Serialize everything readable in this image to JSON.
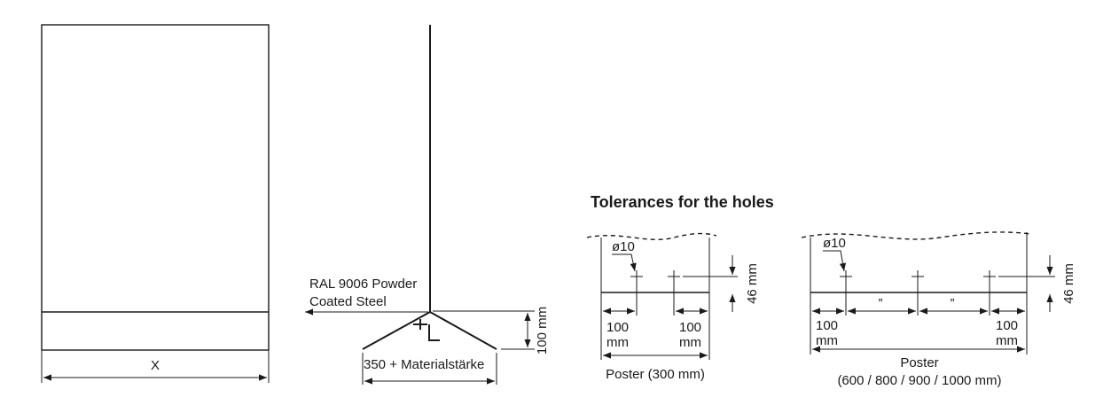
{
  "front_view": {
    "width_label": "X"
  },
  "side_view": {
    "material_label_line1": "RAL 9006 Powder",
    "material_label_line2": "Coated Steel",
    "height_label": "100 mm",
    "base_label": "350 + Materialstärke"
  },
  "tolerances": {
    "title": "Tolerances for the holes",
    "small": {
      "hole_label": "ø10",
      "depth_label": "46 mm",
      "left_offset_line1": "100",
      "left_offset_line2": "mm",
      "right_offset_line1": "100",
      "right_offset_line2": "mm",
      "poster_label": "Poster (300 mm)"
    },
    "large": {
      "hole_label": "ø10",
      "depth_label": "46 mm",
      "ditto_1": "”",
      "ditto_2": "”",
      "left_offset_line1": "100",
      "left_offset_line2": "mm",
      "right_offset_line1": "100",
      "right_offset_line2": "mm",
      "poster_label_line1": "Poster",
      "poster_label_line2": "(600 / 800 / 900 / 1000 mm)"
    }
  }
}
